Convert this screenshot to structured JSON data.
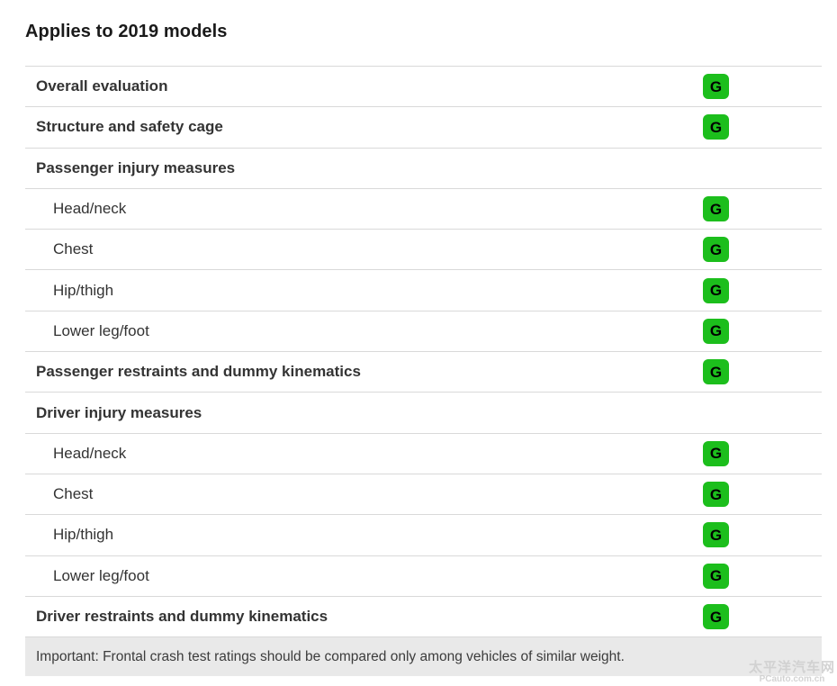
{
  "title": "Applies to 2019 models",
  "colors": {
    "rating_good": "#1cbe1c",
    "divider": "#d9d9d9",
    "row_text": "#333333",
    "footer_bg": "#e9e9e9"
  },
  "table": {
    "rows": [
      {
        "label": "Overall evaluation",
        "style": "section",
        "rating": "G"
      },
      {
        "label": "Structure and safety cage",
        "style": "section",
        "rating": "G"
      },
      {
        "label": "Passenger injury measures",
        "style": "section",
        "rating": ""
      },
      {
        "label": "Head/neck",
        "style": "sub",
        "rating": "G"
      },
      {
        "label": "Chest",
        "style": "sub",
        "rating": "G"
      },
      {
        "label": "Hip/thigh",
        "style": "sub",
        "rating": "G"
      },
      {
        "label": "Lower leg/foot",
        "style": "sub",
        "rating": "G"
      },
      {
        "label": "Passenger restraints and dummy kinematics",
        "style": "section",
        "rating": "G"
      },
      {
        "label": "Driver injury measures",
        "style": "section",
        "rating": ""
      },
      {
        "label": "Head/neck",
        "style": "sub",
        "rating": "G"
      },
      {
        "label": "Chest",
        "style": "sub",
        "rating": "G"
      },
      {
        "label": "Hip/thigh",
        "style": "sub",
        "rating": "G"
      },
      {
        "label": "Lower leg/foot",
        "style": "sub",
        "rating": "G"
      },
      {
        "label": "Driver restraints and dummy kinematics",
        "style": "section",
        "rating": "G"
      }
    ]
  },
  "footer": {
    "note": "Important: Frontal crash test ratings should be compared only among vehicles of similar weight."
  },
  "watermark": {
    "line1": "太平洋汽车网",
    "line2": "PCauto.com.cn"
  }
}
